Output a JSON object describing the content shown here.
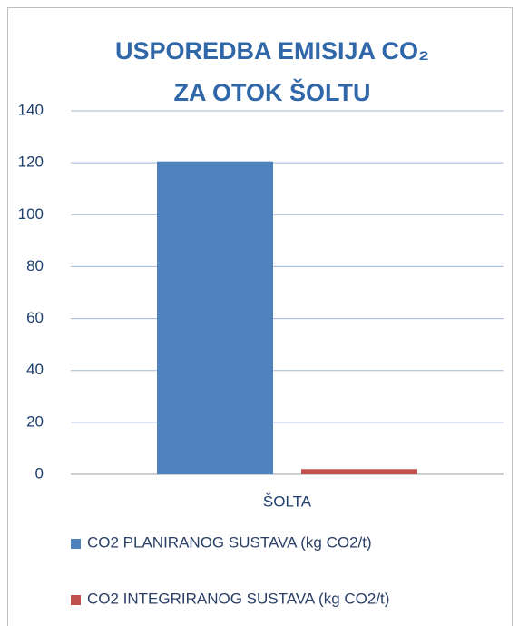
{
  "chart_data": {
    "type": "bar",
    "title": [
      "USPOREDBA EMISIJA CO₂",
      "ZA OTOK ŠOLTU"
    ],
    "categories": [
      "ŠOLTA"
    ],
    "series": [
      {
        "name": "CO2 PLANIRANOG SUSTAVA  (kg CO2/t)",
        "color": "#4f81bd",
        "values": [
          120.5
        ]
      },
      {
        "name": "CO2 INTEGRIRANOG SUSTAVA  (kg CO2/t)",
        "color": "#c0504d",
        "values": [
          2
        ]
      }
    ],
    "ylim": [
      0,
      140
    ],
    "yticks": [
      0,
      20,
      40,
      60,
      80,
      100,
      120,
      140
    ],
    "grid": true,
    "legend": "bottom"
  }
}
